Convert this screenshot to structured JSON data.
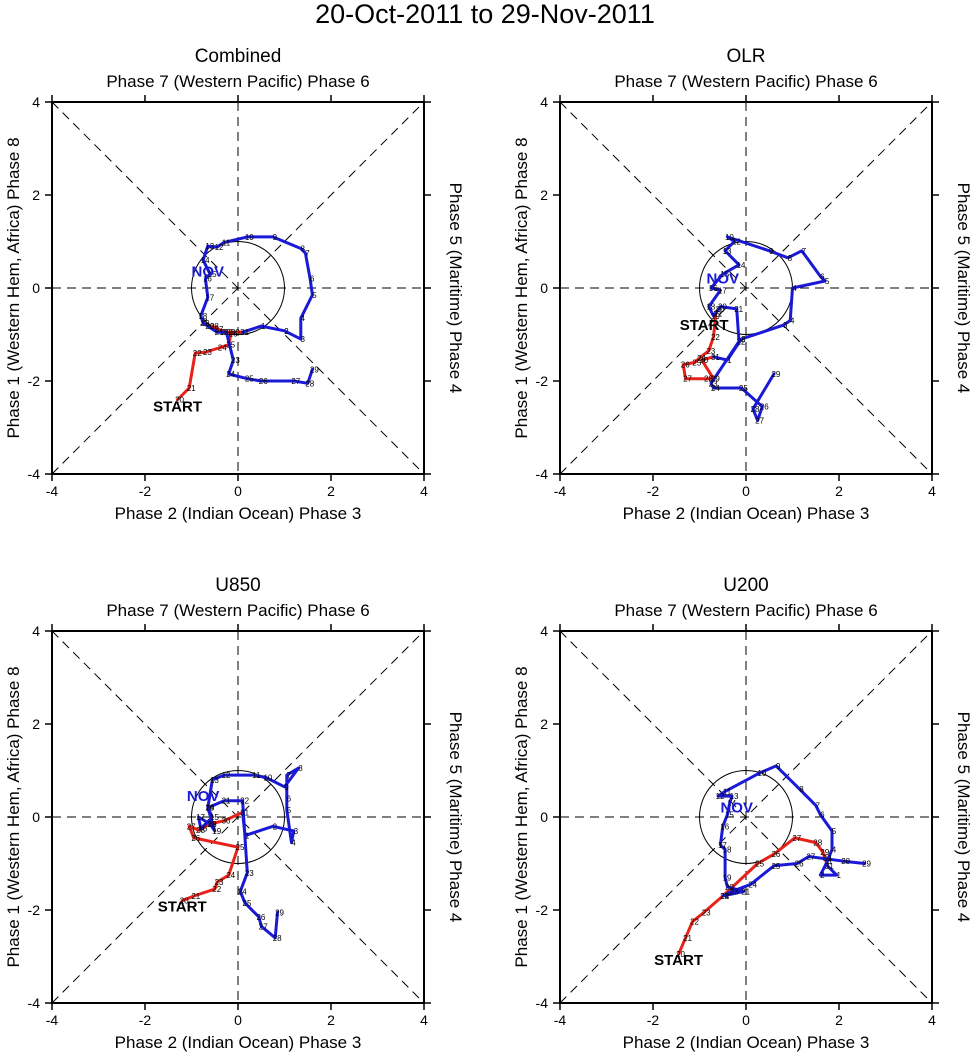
{
  "figure_title": "20-Oct-2011 to 29-Nov-2011",
  "axis_labels": {
    "top": "Phase 7 (Western Pacific) Phase 6",
    "bottom": "Phase 2 (Indian Ocean) Phase 3",
    "left": "Phase 1 (Western Hem, Africa) Phase 8",
    "right": "Phase 5 (Maritime) Phase 4"
  },
  "tick_labels": [
    "-4",
    "-2",
    "0",
    "2",
    "4"
  ],
  "start_label": "START",
  "month_label": "NOV",
  "colors": {
    "october": "#e8211a",
    "november": "#1a1ad6",
    "month_text": "#1a1ad6"
  },
  "chart_data": [
    {
      "type": "line",
      "title": "Combined",
      "xlim": [
        -4,
        4
      ],
      "ylim": [
        -4,
        4
      ],
      "xlabel": "Phase 2 (Indian Ocean) Phase 3",
      "ylabel": "Phase 1 (Western Hem, Africa) Phase 8",
      "start_at": [
        -1.3,
        -2.55
      ],
      "month_at": [
        -0.65,
        0.35
      ],
      "series": [
        {
          "name": "October",
          "color": "#e8211a",
          "points": [
            [
              -1.3,
              -2.4,
              "20"
            ],
            [
              -1.05,
              -2.15,
              "21"
            ],
            [
              -0.92,
              -1.4,
              "22"
            ],
            [
              -0.7,
              -1.38,
              "23"
            ],
            [
              -0.38,
              -1.28,
              "24"
            ],
            [
              -0.2,
              -1.22,
              "25"
            ],
            [
              -0.15,
              -0.98,
              "26"
            ],
            [
              -0.45,
              -0.88,
              "27"
            ],
            [
              -0.55,
              -0.82,
              "28"
            ],
            [
              -0.3,
              -0.95,
              "29"
            ],
            [
              -0.1,
              -0.95,
              "30"
            ],
            [
              0.1,
              -0.95,
              "31"
            ]
          ]
        },
        {
          "name": "November",
          "color": "#1a1ad6",
          "points": [
            [
              0.1,
              -0.95,
              ""
            ],
            [
              0.5,
              -0.82,
              "1"
            ],
            [
              1.0,
              -0.92,
              "2"
            ],
            [
              1.35,
              -1.1,
              "3"
            ],
            [
              1.35,
              -0.65,
              "4"
            ],
            [
              1.6,
              -0.15,
              "5"
            ],
            [
              1.55,
              0.2,
              "6"
            ],
            [
              1.45,
              0.75,
              "7"
            ],
            [
              1.35,
              0.85,
              "8"
            ],
            [
              0.75,
              1.1,
              "9"
            ],
            [
              0.2,
              1.1,
              "10"
            ],
            [
              -0.3,
              0.98,
              "11"
            ],
            [
              -0.45,
              0.88,
              "12"
            ],
            [
              -0.65,
              0.9,
              "13"
            ],
            [
              -0.75,
              0.6,
              "14"
            ],
            [
              -0.6,
              0.3,
              "15"
            ],
            [
              -0.7,
              0.2,
              "16"
            ],
            [
              -0.65,
              -0.2,
              "17"
            ],
            [
              -0.8,
              -0.6,
              "18"
            ],
            [
              -0.75,
              -0.75,
              "19"
            ],
            [
              -0.65,
              -0.82,
              "20"
            ],
            [
              -0.45,
              -0.95,
              "21"
            ],
            [
              -0.25,
              -0.95,
              "22"
            ],
            [
              -0.1,
              -1.55,
              "23"
            ],
            [
              -0.2,
              -1.85,
              "24"
            ],
            [
              0.2,
              -1.95,
              "25"
            ],
            [
              0.5,
              -2.0,
              "26"
            ],
            [
              1.2,
              -2.0,
              "27"
            ],
            [
              1.5,
              -2.05,
              "28"
            ],
            [
              1.6,
              -1.75,
              "29"
            ]
          ]
        }
      ]
    },
    {
      "type": "line",
      "title": "OLR",
      "xlim": [
        -4,
        4
      ],
      "ylim": [
        -4,
        4
      ],
      "xlabel": "Phase 2 (Indian Ocean) Phase 3",
      "ylabel": "Phase 1 (Western Hem, Africa) Phase 8",
      "start_at": [
        -0.9,
        -0.8
      ],
      "month_at": [
        -0.5,
        0.2
      ],
      "series": [
        {
          "name": "October",
          "color": "#e8211a",
          "points": [
            [
              -0.6,
              -0.45,
              "20"
            ],
            [
              -0.65,
              -0.55,
              "21"
            ],
            [
              -0.7,
              -1.05,
              "22"
            ],
            [
              -0.8,
              -1.35,
              "23"
            ],
            [
              -1.0,
              -1.5,
              "24"
            ],
            [
              -1.1,
              -1.6,
              "25"
            ],
            [
              -1.35,
              -1.65,
              "26"
            ],
            [
              -1.3,
              -1.95,
              "27"
            ],
            [
              -0.85,
              -1.95,
              "28"
            ],
            [
              -0.7,
              -1.95,
              "29"
            ],
            [
              -0.95,
              -1.55,
              "30"
            ],
            [
              -0.7,
              -1.48,
              "31"
            ]
          ]
        },
        {
          "name": "November",
          "color": "#1a1ad6",
          "points": [
            [
              -0.7,
              -1.48,
              ""
            ],
            [
              -0.4,
              -1.55,
              "1"
            ],
            [
              -0.1,
              -1.1,
              "2"
            ],
            [
              0.8,
              -0.8,
              "3"
            ],
            [
              0.95,
              -0.7,
              "4"
            ],
            [
              1.0,
              0.0,
              "4"
            ],
            [
              1.7,
              0.15,
              "5"
            ],
            [
              1.6,
              0.25,
              "6"
            ],
            [
              1.2,
              0.8,
              "7"
            ],
            [
              0.9,
              0.65,
              "8"
            ],
            [
              0.5,
              0.8,
              "9"
            ],
            [
              -0.4,
              1.1,
              "10"
            ],
            [
              -0.25,
              1.0,
              "12"
            ],
            [
              -0.45,
              0.8,
              "13"
            ],
            [
              -0.15,
              0.5,
              "14"
            ],
            [
              -0.5,
              0.3,
              "15"
            ],
            [
              -0.75,
              0.0,
              "16"
            ],
            [
              -0.55,
              -0.05,
              "17"
            ],
            [
              -0.8,
              -0.4,
              "18"
            ],
            [
              -0.7,
              -0.6,
              "19"
            ],
            [
              -0.55,
              -0.4,
              "20"
            ],
            [
              -0.2,
              -0.45,
              "21"
            ],
            [
              -0.15,
              -1.15,
              "22"
            ],
            [
              -0.75,
              -2.05,
              "23"
            ],
            [
              -0.7,
              -2.15,
              "24"
            ],
            [
              -0.1,
              -2.15,
              "25"
            ],
            [
              0.35,
              -2.55,
              "26"
            ],
            [
              0.25,
              -2.85,
              "27"
            ],
            [
              0.15,
              -2.6,
              "28"
            ],
            [
              0.6,
              -1.85,
              "29"
            ]
          ]
        }
      ]
    },
    {
      "type": "line",
      "title": "U850",
      "xlim": [
        -4,
        4
      ],
      "ylim": [
        -4,
        4
      ],
      "xlabel": "Phase 2 (Indian Ocean) Phase 3",
      "ylabel": "Phase 1 (Western Hem, Africa) Phase 8",
      "start_at": [
        -1.2,
        -1.92
      ],
      "month_at": [
        -0.75,
        0.45
      ],
      "series": [
        {
          "name": "October",
          "color": "#e8211a",
          "points": [
            [
              -1.2,
              -1.8,
              "20"
            ],
            [
              -0.95,
              -1.7,
              "21"
            ],
            [
              -0.5,
              -1.55,
              "22"
            ],
            [
              -0.45,
              -1.4,
              "23"
            ],
            [
              -0.2,
              -1.25,
              "24"
            ],
            [
              0.0,
              -0.65,
              "25"
            ],
            [
              -0.95,
              -0.45,
              "26"
            ],
            [
              -1.05,
              -0.2,
              "27"
            ],
            [
              -0.85,
              -0.28,
              "28"
            ],
            [
              -0.6,
              -0.15,
              "29"
            ],
            [
              -0.3,
              -0.08,
              "30"
            ],
            [
              0.1,
              0.1,
              "31"
            ]
          ]
        },
        {
          "name": "November",
          "color": "#1a1ad6",
          "points": [
            [
              0.1,
              0.1,
              ""
            ],
            [
              0.15,
              -0.4,
              "1"
            ],
            [
              0.75,
              -0.2,
              "2"
            ],
            [
              1.2,
              -0.3,
              "3"
            ],
            [
              1.15,
              -0.55,
              "4"
            ],
            [
              1.05,
              0.15,
              "5"
            ],
            [
              1.05,
              0.4,
              "6"
            ],
            [
              1.05,
              0.9,
              "7"
            ],
            [
              1.3,
              1.05,
              "8"
            ],
            [
              1.0,
              0.65,
              "9"
            ],
            [
              0.6,
              0.85,
              "10"
            ],
            [
              0.35,
              0.9,
              "11"
            ],
            [
              -0.3,
              0.9,
              "12"
            ],
            [
              -0.55,
              0.8,
              "13"
            ],
            [
              -0.65,
              0.2,
              "14"
            ],
            [
              -0.55,
              0.0,
              "15"
            ],
            [
              -0.8,
              -0.25,
              "16"
            ],
            [
              -0.85,
              0.0,
              "17"
            ],
            [
              -0.6,
              -0.15,
              "18"
            ],
            [
              -0.5,
              -0.3,
              "19"
            ],
            [
              -0.65,
              0.2,
              "20"
            ],
            [
              -0.3,
              0.35,
              "21"
            ],
            [
              0.1,
              0.35,
              "22"
            ],
            [
              0.2,
              -1.2,
              "23"
            ],
            [
              0.05,
              -1.6,
              "24"
            ],
            [
              0.15,
              -1.85,
              "25"
            ],
            [
              0.45,
              -2.15,
              "26"
            ],
            [
              0.5,
              -2.35,
              "27"
            ],
            [
              0.8,
              -2.6,
              "28"
            ],
            [
              0.85,
              -2.05,
              "29"
            ]
          ]
        }
      ]
    },
    {
      "type": "line",
      "title": "U200",
      "xlim": [
        -4,
        4
      ],
      "ylim": [
        -4,
        4
      ],
      "xlabel": "Phase 2 (Indian Ocean) Phase 3",
      "ylabel": "Phase 1 (Western Hem, Africa) Phase 8",
      "start_at": [
        -1.45,
        -3.08
      ],
      "month_at": [
        -0.2,
        0.2
      ],
      "series": [
        {
          "name": "October",
          "color": "#e8211a",
          "points": [
            [
              -1.45,
              -2.95,
              "20"
            ],
            [
              -1.3,
              -2.6,
              "21"
            ],
            [
              -1.15,
              -2.25,
              "22"
            ],
            [
              -0.9,
              -2.05,
              "23"
            ],
            [
              -0.5,
              -1.7,
              "24"
            ],
            [
              0.25,
              -1.0,
              "25"
            ],
            [
              0.6,
              -0.8,
              "26"
            ],
            [
              1.05,
              -0.45,
              "27"
            ],
            [
              1.5,
              -0.55,
              "28"
            ],
            [
              1.65,
              -0.75,
              "29"
            ],
            [
              1.7,
              -0.88,
              "30"
            ],
            [
              1.75,
              -1.05,
              "31"
            ]
          ]
        },
        {
          "name": "November",
          "color": "#1a1ad6",
          "points": [
            [
              1.75,
              -1.05,
              ""
            ],
            [
              1.95,
              -1.25,
              "1"
            ],
            [
              1.6,
              -1.25,
              "2"
            ],
            [
              1.75,
              -0.95,
              "3"
            ],
            [
              1.85,
              -0.7,
              "4"
            ],
            [
              1.85,
              -0.3,
              "5"
            ],
            [
              1.6,
              0.05,
              "6"
            ],
            [
              1.5,
              0.25,
              "7"
            ],
            [
              1.15,
              0.6,
              "8"
            ],
            [
              0.65,
              1.1,
              "9"
            ],
            [
              0.3,
              0.95,
              "10"
            ],
            [
              -0.45,
              0.55,
              "11"
            ],
            [
              -0.6,
              0.45,
              "12"
            ],
            [
              -0.3,
              0.45,
              "13"
            ],
            [
              -0.35,
              0.3,
              "14"
            ],
            [
              -0.4,
              0.05,
              "15"
            ],
            [
              -0.5,
              -0.2,
              "16"
            ],
            [
              -0.55,
              -0.6,
              "17"
            ],
            [
              -0.45,
              -0.7,
              "18"
            ],
            [
              -0.45,
              -1.3,
              "19"
            ],
            [
              -0.4,
              -1.5,
              "20"
            ],
            [
              -0.05,
              -1.6,
              "21"
            ],
            [
              -0.5,
              -1.7,
              "22"
            ],
            [
              -0.3,
              -1.6,
              "23"
            ],
            [
              0.1,
              -1.45,
              "24"
            ],
            [
              0.6,
              -1.05,
              "25"
            ],
            [
              1.1,
              -1.0,
              "26"
            ],
            [
              1.35,
              -0.85,
              "27"
            ],
            [
              2.1,
              -0.95,
              "28"
            ],
            [
              2.55,
              -1.0,
              "29"
            ]
          ]
        }
      ]
    }
  ]
}
